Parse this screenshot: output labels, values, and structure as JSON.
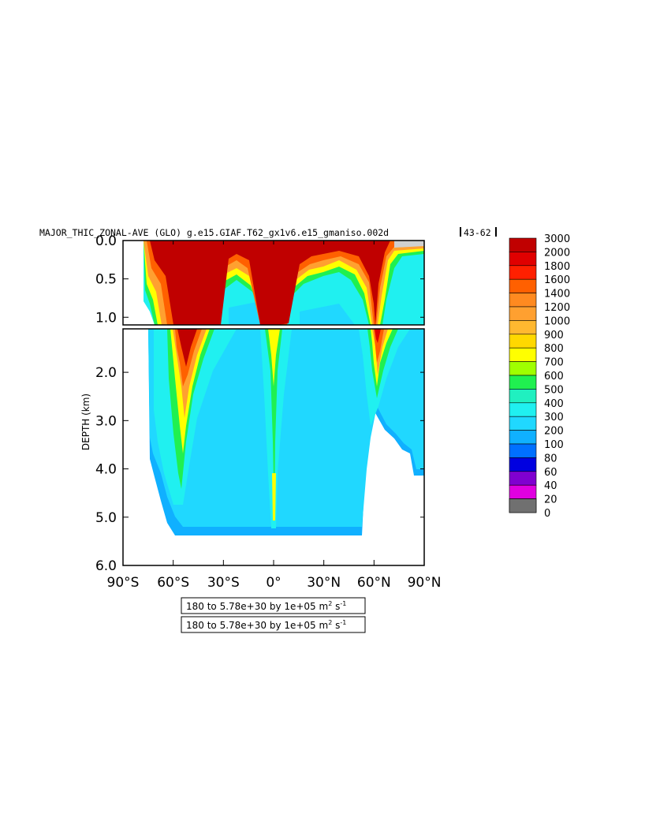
{
  "chart_data": {
    "type": "heatmap",
    "title": "MAJOR_THIC_ZONAL-AVE (GLO) g.e15.GIAF.T62_gx1v6.e15_gmaniso.002d",
    "title_suffix": "43-62",
    "ylabel": "DEPTH (km)",
    "x_ticks": [
      "90°S",
      "60°S",
      "30°S",
      "0°",
      "30°N",
      "60°N",
      "90°N"
    ],
    "x_tick_values": [
      -90,
      -60,
      -30,
      0,
      30,
      60,
      90
    ],
    "xlim": [
      -90,
      90
    ],
    "upper_panel": {
      "ylim": [
        0.0,
        1.1
      ],
      "y_ticks": [
        "0.0",
        "0.5",
        "1.0"
      ],
      "y_tick_values": [
        0.0,
        0.5,
        1.0
      ]
    },
    "lower_panel": {
      "ylim": [
        1.1,
        6.0
      ],
      "y_ticks": [
        "2.0",
        "3.0",
        "4.0",
        "5.0",
        "6.0"
      ],
      "y_tick_values": [
        2.0,
        3.0,
        4.0,
        5.0,
        6.0
      ]
    },
    "contour_info": [
      "180 to 5.78e+30 by 1e+05 m",
      "180 to 5.78e+30 by 1e+05 m"
    ],
    "contour_unit_sup": "2",
    "contour_unit_tail": " s",
    "contour_unit_sup2": "-1",
    "colorbar": {
      "labels": [
        "3000",
        "2000",
        "1800",
        "1600",
        "1400",
        "1200",
        "1000",
        "900",
        "800",
        "700",
        "600",
        "500",
        "400",
        "300",
        "200",
        "100",
        "80",
        "60",
        "40",
        "20",
        "0"
      ],
      "colors": [
        "#c00000",
        "#e00000",
        "#ff2000",
        "#ff6000",
        "#ff8a20",
        "#ffa030",
        "#ffb830",
        "#ffd800",
        "#ffff00",
        "#a0ff00",
        "#20f050",
        "#20f0c0",
        "#20f0f0",
        "#20d8ff",
        "#10b0ff",
        "#0070ff",
        "#0000e0",
        "#8000d0",
        "#e000e0",
        "#d0d0d0",
        "#707070"
      ]
    }
  }
}
